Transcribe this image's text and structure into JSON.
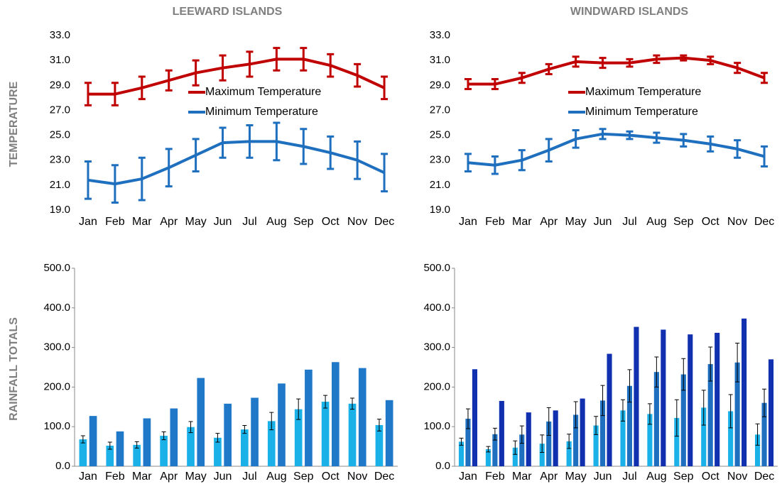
{
  "columns": [
    "LEEWARD ISLANDS",
    "WINDWARD ISLANDS"
  ],
  "rows": [
    "TEMPERATURE",
    "RAINFALL TOTALS"
  ],
  "chart_data": [
    {
      "type": "line",
      "legend": "center",
      "categories": [
        "Jan",
        "Feb",
        "Mar",
        "Apr",
        "May",
        "Jun",
        "Jul",
        "Aug",
        "Sep",
        "Oct",
        "Nov",
        "Dec"
      ],
      "ylim": [
        19,
        33
      ],
      "yticks": [
        {
          "value": 19,
          "label": "19.0"
        },
        {
          "value": 21,
          "label": "21.0"
        },
        {
          "value": 23,
          "label": "23.0"
        },
        {
          "value": 25,
          "label": "25.0"
        },
        {
          "value": 27,
          "label": "27.0"
        },
        {
          "value": 29,
          "label": "29.0"
        },
        {
          "value": 31,
          "label": "31.0"
        },
        {
          "value": 33,
          "label": "33.0"
        }
      ],
      "series": [
        {
          "name": "Maximum Temperature",
          "color": "#c00000",
          "values": [
            28.3,
            28.3,
            28.8,
            29.4,
            30.0,
            30.4,
            30.7,
            31.1,
            31.1,
            30.6,
            29.8,
            28.8
          ],
          "errors": [
            0.9,
            0.9,
            0.9,
            0.8,
            1.0,
            1.0,
            1.0,
            0.9,
            0.9,
            0.9,
            0.9,
            0.9
          ]
        },
        {
          "name": "Minimum Temperature",
          "color": "#1f6fbf",
          "values": [
            21.4,
            21.1,
            21.5,
            22.4,
            23.4,
            24.4,
            24.5,
            24.5,
            24.1,
            23.6,
            23.0,
            22.0
          ],
          "errors": [
            1.5,
            1.5,
            1.7,
            1.5,
            1.3,
            1.2,
            1.3,
            1.5,
            1.4,
            1.3,
            1.5,
            1.5
          ]
        }
      ]
    },
    {
      "type": "line",
      "legend": "center",
      "categories": [
        "Jan",
        "Feb",
        "Mar",
        "Apr",
        "May",
        "Jun",
        "Jul",
        "Aug",
        "Sep",
        "Oct",
        "Nov",
        "Dec"
      ],
      "ylim": [
        19,
        33
      ],
      "yticks": [
        {
          "value": 19,
          "label": "19.0"
        },
        {
          "value": 21,
          "label": "21.0"
        },
        {
          "value": 23,
          "label": "23.0"
        },
        {
          "value": 25,
          "label": "25.0"
        },
        {
          "value": 27,
          "label": "27.0"
        },
        {
          "value": 29,
          "label": "29.0"
        },
        {
          "value": 31,
          "label": "31.0"
        },
        {
          "value": 33,
          "label": "33.0"
        }
      ],
      "series": [
        {
          "name": "Maximum Temperature",
          "color": "#c00000",
          "values": [
            29.1,
            29.1,
            29.6,
            30.3,
            30.9,
            30.8,
            30.8,
            31.1,
            31.2,
            31.0,
            30.4,
            29.6
          ],
          "errors": [
            0.4,
            0.4,
            0.4,
            0.4,
            0.4,
            0.4,
            0.3,
            0.3,
            0.2,
            0.3,
            0.4,
            0.4
          ]
        },
        {
          "name": "Minimum Temperature",
          "color": "#1f6fbf",
          "values": [
            22.8,
            22.6,
            23.0,
            23.8,
            24.7,
            25.1,
            25.0,
            24.8,
            24.6,
            24.3,
            23.9,
            23.3
          ],
          "errors": [
            0.7,
            0.7,
            0.8,
            0.9,
            0.7,
            0.4,
            0.3,
            0.4,
            0.5,
            0.6,
            0.7,
            0.8
          ]
        }
      ]
    },
    {
      "type": "bar",
      "categories": [
        "Jan",
        "Feb",
        "Mar",
        "Apr",
        "May",
        "Jun",
        "Jul",
        "Aug",
        "Sep",
        "Oct",
        "Nov",
        "Dec"
      ],
      "ylim": [
        0,
        500
      ],
      "yticks": [
        {
          "value": 0,
          "label": "0.0"
        },
        {
          "value": 100,
          "label": "100.0"
        },
        {
          "value": 200,
          "label": "200.0"
        },
        {
          "value": 300,
          "label": "300.0"
        },
        {
          "value": 400,
          "label": "400.0"
        },
        {
          "value": 500,
          "label": "500.0"
        }
      ],
      "series": [
        {
          "color": "#1ab0e8",
          "values": [
            68,
            52,
            54,
            77,
            99,
            72,
            93,
            114,
            144,
            163,
            158,
            104
          ],
          "errors": [
            9,
            9,
            8,
            10,
            14,
            11,
            10,
            22,
            26,
            16,
            14,
            15
          ]
        },
        {
          "color": "#1f78c8",
          "values": [
            127,
            88,
            121,
            146,
            223,
            158,
            173,
            209,
            244,
            263,
            248,
            167
          ]
        }
      ]
    },
    {
      "type": "bar",
      "categories": [
        "Jan",
        "Feb",
        "Mar",
        "Apr",
        "May",
        "Jun",
        "Jul",
        "Aug",
        "Sep",
        "Oct",
        "Nov",
        "Dec"
      ],
      "ylim": [
        0,
        500
      ],
      "yticks": [
        {
          "value": 0,
          "label": "0.0"
        },
        {
          "value": 100,
          "label": "100.0"
        },
        {
          "value": 200,
          "label": "200.0"
        },
        {
          "value": 300,
          "label": "300.0"
        },
        {
          "value": 400,
          "label": "400.0"
        },
        {
          "value": 500,
          "label": "500.0"
        }
      ],
      "series": [
        {
          "color": "#1ab0e8",
          "values": [
            62,
            43,
            47,
            57,
            63,
            103,
            141,
            132,
            122,
            148,
            139,
            80
          ],
          "errors": [
            9,
            7,
            17,
            22,
            18,
            23,
            27,
            26,
            46,
            44,
            42,
            27
          ]
        },
        {
          "color": "#1e6fc0",
          "values": [
            120,
            81,
            80,
            113,
            130,
            166,
            203,
            238,
            232,
            258,
            262,
            160
          ],
          "errors": [
            25,
            15,
            22,
            35,
            33,
            38,
            41,
            38,
            40,
            43,
            49,
            35
          ]
        },
        {
          "color": "#1030b0",
          "values": [
            245,
            165,
            136,
            141,
            171,
            284,
            352,
            345,
            333,
            337,
            373,
            270
          ]
        }
      ]
    }
  ]
}
